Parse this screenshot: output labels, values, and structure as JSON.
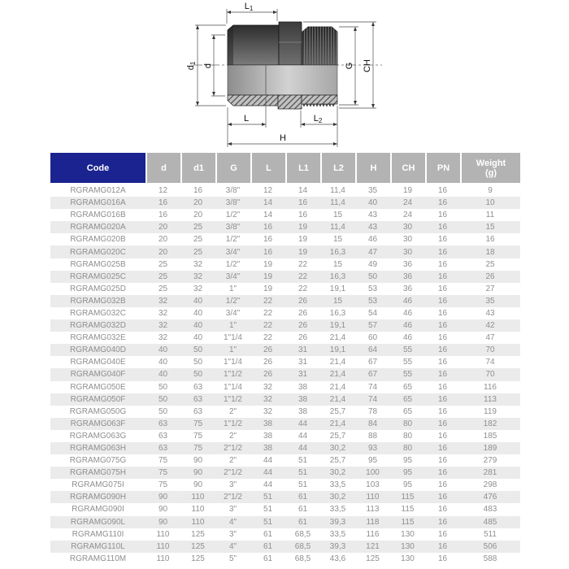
{
  "drawing": {
    "labels": {
      "L1": {
        "base": "L",
        "sub": "1"
      },
      "d1": {
        "base": "d",
        "sub": "1"
      },
      "d": {
        "base": "d",
        "sub": ""
      },
      "G": {
        "base": "G",
        "sub": ""
      },
      "CH": {
        "base": "CH",
        "sub": ""
      },
      "L": {
        "base": "L",
        "sub": ""
      },
      "L2": {
        "base": "L",
        "sub": "2"
      },
      "H": {
        "base": "H",
        "sub": ""
      }
    }
  },
  "table": {
    "colors": {
      "header_code_bg": "#1b2390",
      "header_bg": "#b3b3b3",
      "stripe_bg": "#ebebeb",
      "body_text": "#8f8f8f"
    },
    "columns": [
      {
        "id": "code",
        "label": "Code"
      },
      {
        "id": "d",
        "label": "d"
      },
      {
        "id": "d1",
        "label": "d1"
      },
      {
        "id": "g",
        "label": "G"
      },
      {
        "id": "l",
        "label": "L"
      },
      {
        "id": "l1",
        "label": "L1"
      },
      {
        "id": "l2",
        "label": "L2"
      },
      {
        "id": "h",
        "label": "H"
      },
      {
        "id": "ch",
        "label": "CH"
      },
      {
        "id": "pn",
        "label": "PN"
      },
      {
        "id": "weight",
        "label": "Weight",
        "label2": "(g)"
      }
    ],
    "rows": [
      [
        "RGRAMG012A",
        "12",
        "16",
        "3/8\"",
        "12",
        "14",
        "11,4",
        "35",
        "19",
        "16",
        "9"
      ],
      [
        "RGRAMG016A",
        "16",
        "20",
        "3/8\"",
        "14",
        "16",
        "11,4",
        "40",
        "24",
        "16",
        "10"
      ],
      [
        "RGRAMG016B",
        "16",
        "20",
        "1/2\"",
        "14",
        "16",
        "15",
        "43",
        "24",
        "16",
        "11"
      ],
      [
        "RGRAMG020A",
        "20",
        "25",
        "3/8\"",
        "16",
        "19",
        "11,4",
        "43",
        "30",
        "16",
        "15"
      ],
      [
        "RGRAMG020B",
        "20",
        "25",
        "1/2\"",
        "16",
        "19",
        "15",
        "46",
        "30",
        "16",
        "16"
      ],
      [
        "RGRAMG020C",
        "20",
        "25",
        "3/4\"",
        "16",
        "19",
        "16,3",
        "47",
        "30",
        "16",
        "18"
      ],
      [
        "RGRAMG025B",
        "25",
        "32",
        "1/2\"",
        "19",
        "22",
        "15",
        "49",
        "36",
        "16",
        "25"
      ],
      [
        "RGRAMG025C",
        "25",
        "32",
        "3/4\"",
        "19",
        "22",
        "16,3",
        "50",
        "36",
        "16",
        "26"
      ],
      [
        "RGRAMG025D",
        "25",
        "32",
        "1\"",
        "19",
        "22",
        "19,1",
        "53",
        "36",
        "16",
        "27"
      ],
      [
        "RGRAMG032B",
        "32",
        "40",
        "1/2\"",
        "22",
        "26",
        "15",
        "53",
        "46",
        "16",
        "35"
      ],
      [
        "RGRAMG032C",
        "32",
        "40",
        "3/4\"",
        "22",
        "26",
        "16,3",
        "54",
        "46",
        "16",
        "43"
      ],
      [
        "RGRAMG032D",
        "32",
        "40",
        "1\"",
        "22",
        "26",
        "19,1",
        "57",
        "46",
        "16",
        "42"
      ],
      [
        "RGRAMG032E",
        "32",
        "40",
        "1\"1/4",
        "22",
        "26",
        "21,4",
        "60",
        "46",
        "16",
        "47"
      ],
      [
        "RGRAMG040D",
        "40",
        "50",
        "1\"",
        "26",
        "31",
        "19,1",
        "64",
        "55",
        "16",
        "70"
      ],
      [
        "RGRAMG040E",
        "40",
        "50",
        "1\"1/4",
        "26",
        "31",
        "21,4",
        "67",
        "55",
        "16",
        "74"
      ],
      [
        "RGRAMG040F",
        "40",
        "50",
        "1\"1/2",
        "26",
        "31",
        "21,4",
        "67",
        "55",
        "16",
        "70"
      ],
      [
        "RGRAMG050E",
        "50",
        "63",
        "1\"1/4",
        "32",
        "38",
        "21,4",
        "74",
        "65",
        "16",
        "116"
      ],
      [
        "RGRAMG050F",
        "50",
        "63",
        "1\"1/2",
        "32",
        "38",
        "21,4",
        "74",
        "65",
        "16",
        "113"
      ],
      [
        "RGRAMG050G",
        "50",
        "63",
        "2\"",
        "32",
        "38",
        "25,7",
        "78",
        "65",
        "16",
        "119"
      ],
      [
        "RGRAMG063F",
        "63",
        "75",
        "1\"1/2",
        "38",
        "44",
        "21,4",
        "84",
        "80",
        "16",
        "182"
      ],
      [
        "RGRAMG063G",
        "63",
        "75",
        "2\"",
        "38",
        "44",
        "25,7",
        "88",
        "80",
        "16",
        "185"
      ],
      [
        "RGRAMG063H",
        "63",
        "75",
        "2\"1/2",
        "38",
        "44",
        "30,2",
        "93",
        "80",
        "16",
        "189"
      ],
      [
        "RGRAMG075G",
        "75",
        "90",
        "2\"",
        "44",
        "51",
        "25,7",
        "95",
        "95",
        "16",
        "279"
      ],
      [
        "RGRAMG075H",
        "75",
        "90",
        "2\"1/2",
        "44",
        "51",
        "30,2",
        "100",
        "95",
        "16",
        "281"
      ],
      [
        "RGRAMG075I",
        "75",
        "90",
        "3\"",
        "44",
        "51",
        "33,5",
        "103",
        "95",
        "16",
        "298"
      ],
      [
        "RGRAMG090H",
        "90",
        "110",
        "2\"1/2",
        "51",
        "61",
        "30,2",
        "110",
        "115",
        "16",
        "476"
      ],
      [
        "RGRAMG090I",
        "90",
        "110",
        "3\"",
        "51",
        "61",
        "33,5",
        "113",
        "115",
        "16",
        "483"
      ],
      [
        "RGRAMG090L",
        "90",
        "110",
        "4\"",
        "51",
        "61",
        "39,3",
        "118",
        "115",
        "16",
        "485"
      ],
      [
        "RGRAMG110I",
        "110",
        "125",
        "3\"",
        "61",
        "68,5",
        "33,5",
        "116",
        "130",
        "16",
        "511"
      ],
      [
        "RGRAMG110L",
        "110",
        "125",
        "4\"",
        "61",
        "68,5",
        "39,3",
        "121",
        "130",
        "16",
        "506"
      ],
      [
        "RGRAMG110M",
        "110",
        "125",
        "5\"",
        "61",
        "68,5",
        "43,6",
        "125",
        "130",
        "16",
        "588"
      ]
    ]
  }
}
